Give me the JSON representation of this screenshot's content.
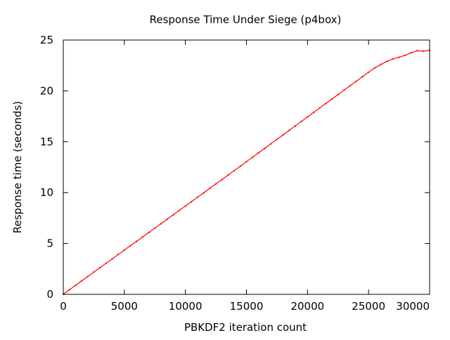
{
  "chart_data": {
    "type": "scatter",
    "title": "Response Time Under Siege (p4box)",
    "xlabel": "PBKDF2 iteration count",
    "ylabel": "Response time (seconds)",
    "xlim": [
      0,
      30000
    ],
    "ylim": [
      0,
      25
    ],
    "xticks": [
      0,
      5000,
      10000,
      15000,
      20000,
      25000,
      30000
    ],
    "yticks": [
      0,
      5,
      10,
      15,
      20,
      25
    ],
    "grid": false,
    "legend": "none",
    "series": [
      {
        "color": "#ff0000",
        "points": [
          [
            0,
            0.0
          ],
          [
            500,
            0.45
          ],
          [
            1000,
            0.88
          ],
          [
            1500,
            1.32
          ],
          [
            2000,
            1.75
          ],
          [
            2500,
            2.19
          ],
          [
            3000,
            2.62
          ],
          [
            3500,
            3.05
          ],
          [
            4000,
            3.48
          ],
          [
            4500,
            3.92
          ],
          [
            5000,
            4.35
          ],
          [
            5500,
            4.78
          ],
          [
            6000,
            5.21
          ],
          [
            6500,
            5.64
          ],
          [
            7000,
            6.08
          ],
          [
            7500,
            6.51
          ],
          [
            8000,
            6.94
          ],
          [
            8500,
            7.38
          ],
          [
            9000,
            7.81
          ],
          [
            9500,
            8.25
          ],
          [
            10000,
            8.68
          ],
          [
            10500,
            9.11
          ],
          [
            11000,
            9.55
          ],
          [
            11500,
            9.98
          ],
          [
            12000,
            10.42
          ],
          [
            12500,
            10.86
          ],
          [
            13000,
            11.29
          ],
          [
            13500,
            11.73
          ],
          [
            14000,
            12.17
          ],
          [
            14500,
            12.6
          ],
          [
            15000,
            13.04
          ],
          [
            15500,
            13.48
          ],
          [
            16000,
            13.92
          ],
          [
            16500,
            14.36
          ],
          [
            17000,
            14.8
          ],
          [
            17500,
            15.24
          ],
          [
            18000,
            15.68
          ],
          [
            18500,
            16.12
          ],
          [
            19000,
            16.56
          ],
          [
            19500,
            17.0
          ],
          [
            20000,
            17.44
          ],
          [
            20500,
            17.88
          ],
          [
            21000,
            18.32
          ],
          [
            21500,
            18.76
          ],
          [
            22000,
            19.2
          ],
          [
            22500,
            19.64
          ],
          [
            23000,
            20.08
          ],
          [
            23500,
            20.52
          ],
          [
            24000,
            20.96
          ],
          [
            24500,
            21.4
          ],
          [
            25000,
            21.84
          ],
          [
            25500,
            22.25
          ],
          [
            26000,
            22.6
          ],
          [
            26500,
            22.9
          ],
          [
            27000,
            23.15
          ],
          [
            27500,
            23.3
          ],
          [
            28000,
            23.5
          ],
          [
            28500,
            23.75
          ],
          [
            29000,
            23.95
          ],
          [
            29500,
            23.9
          ],
          [
            30000,
            24.0
          ]
        ]
      }
    ]
  }
}
